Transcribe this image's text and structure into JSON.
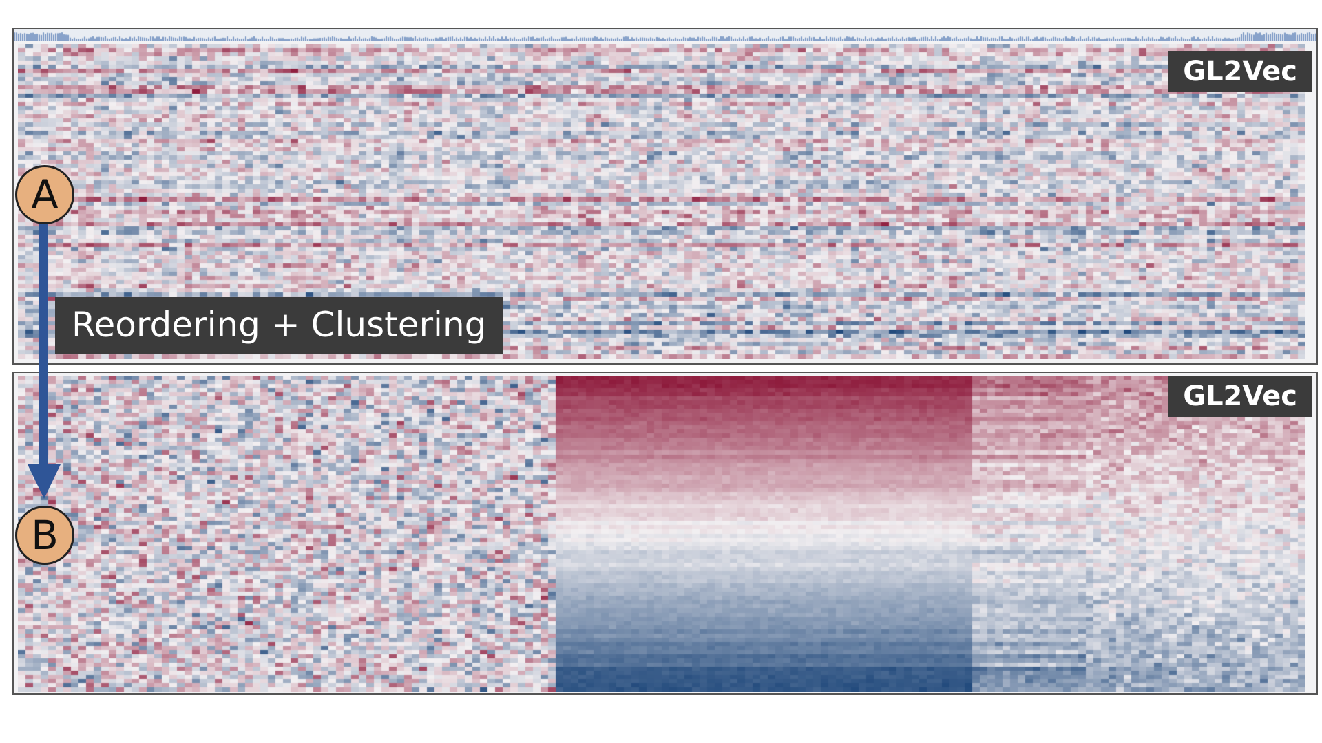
{
  "panels": [
    {
      "id": "before",
      "method_label": "GL2Vec",
      "state": "unordered"
    },
    {
      "id": "after",
      "method_label": "GL2Vec",
      "state": "reordered-and-clustered"
    }
  ],
  "transition": {
    "label": "Reordering + Clustering"
  },
  "markers": {
    "before": "A",
    "after": "B"
  },
  "colors": {
    "positive": "#8e1b3c",
    "neutral": "#f2eff1",
    "negative": "#234b7d",
    "arrow": "#2f5597",
    "marker_fill": "#e7b07f",
    "badge_bg": "#3b3b3b"
  }
}
